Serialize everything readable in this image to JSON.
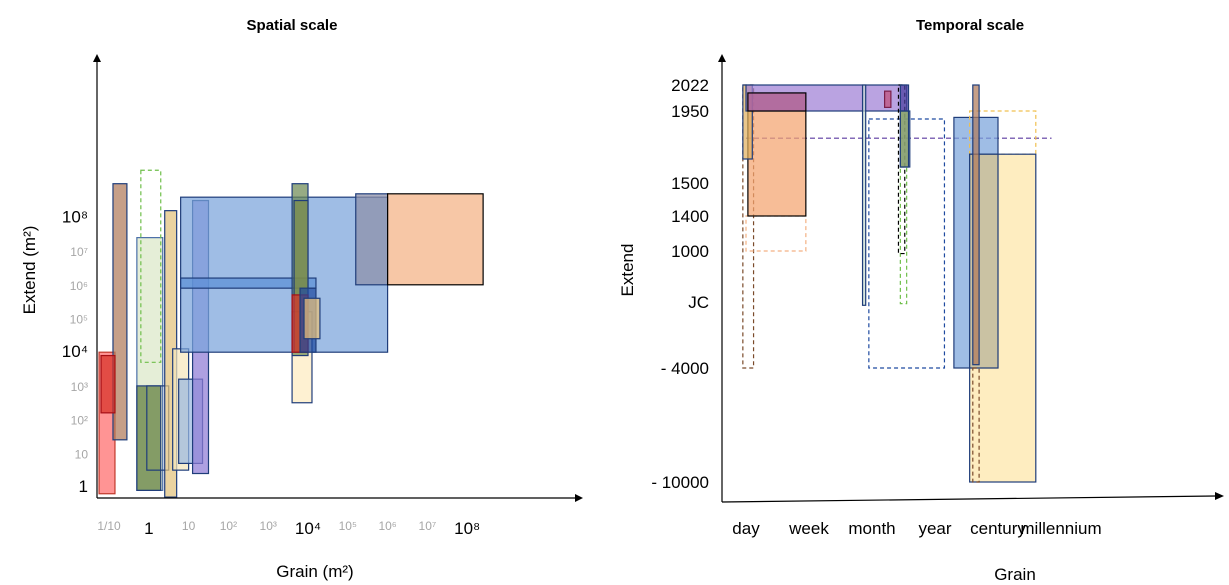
{
  "chart_data": [
    {
      "type": "range-rectangles",
      "title": "Spatial scale",
      "xlabel": "Grain (m²)",
      "ylabel": "Extend (m²)",
      "x_scale": "log10",
      "y_scale": "log10",
      "xlim": [
        -1.3,
        11
      ],
      "ylim": [
        -0.3,
        11.5
      ],
      "x_ticks": [
        {
          "value": -1,
          "label": "1/10",
          "style": "grey"
        },
        {
          "value": 0,
          "label": "1",
          "style": "major"
        },
        {
          "value": 1,
          "label": "10",
          "style": "grey"
        },
        {
          "value": 2,
          "label": "10²",
          "style": "grey"
        },
        {
          "value": 3,
          "label": "10³",
          "style": "grey"
        },
        {
          "value": 4,
          "label": "10⁴",
          "style": "major"
        },
        {
          "value": 5,
          "label": "10⁵",
          "style": "grey"
        },
        {
          "value": 6,
          "label": "10⁶",
          "style": "grey"
        },
        {
          "value": 7,
          "label": "10⁷",
          "style": "grey"
        },
        {
          "value": 8,
          "label": "10⁸",
          "style": "major"
        }
      ],
      "y_ticks": [
        {
          "value": 0,
          "label": "1",
          "style": "major"
        },
        {
          "value": 1,
          "label": "10",
          "style": "grey"
        },
        {
          "value": 2,
          "label": "10²",
          "style": "grey"
        },
        {
          "value": 3,
          "label": "10³",
          "style": "grey"
        },
        {
          "value": 4,
          "label": "10⁴",
          "style": "major"
        },
        {
          "value": 5,
          "label": "10⁵",
          "style": "grey"
        },
        {
          "value": 6,
          "label": "10⁶",
          "style": "grey"
        },
        {
          "value": 7,
          "label": "10⁷",
          "style": "grey"
        },
        {
          "value": 8,
          "label": "10⁸",
          "style": "major"
        }
      ],
      "boxes": [
        {
          "x": [
            -1.25,
            -0.85
          ],
          "y": [
            -0.2,
            4.0
          ],
          "fill": "#ff6b6b",
          "stroke": "#c0392b"
        },
        {
          "x": [
            -0.9,
            -0.55
          ],
          "y": [
            1.4,
            9.0
          ],
          "fill": "#b07a5a",
          "stroke": "#1f3d7a"
        },
        {
          "x": [
            -1.2,
            -0.85
          ],
          "y": [
            2.2,
            3.9
          ],
          "fill": "#d73027",
          "stroke": "#a50f15"
        },
        {
          "x": [
            -0.3,
            0.35
          ],
          "y": [
            -0.1,
            7.4
          ],
          "fill": "#dbe8c8",
          "stroke": "#4a6ea8"
        },
        {
          "x": [
            -0.2,
            0.3
          ],
          "y": [
            3.7,
            9.4
          ],
          "fill": "none",
          "stroke": "#6fbf4a",
          "dash": true
        },
        {
          "x": [
            -0.3,
            0.3
          ],
          "y": [
            -0.1,
            3.0
          ],
          "fill": "#5e7d3a",
          "stroke": "#1f3d7a"
        },
        {
          "x": [
            -0.05,
            0.5
          ],
          "y": [
            0.5,
            3.0
          ],
          "fill": "none",
          "stroke": "#1f3d7a"
        },
        {
          "x": [
            0.4,
            0.7
          ],
          "y": [
            -0.3,
            8.2
          ],
          "fill": "#e2c27b",
          "stroke": "#1f3d7a"
        },
        {
          "x": [
            0.6,
            1.0
          ],
          "y": [
            0.5,
            4.1
          ],
          "fill": "#f5e6bb",
          "stroke": "#1f3d7a"
        },
        {
          "x": [
            0.75,
            1.35
          ],
          "y": [
            0.7,
            3.2
          ],
          "fill": "#9ab8e0",
          "stroke": "#1f3d7a"
        },
        {
          "x": [
            1.1,
            1.5
          ],
          "y": [
            0.4,
            8.5
          ],
          "fill": "#8f7bd6",
          "stroke": "#1f3d7a"
        },
        {
          "x": [
            0.8,
            6.0
          ],
          "y": [
            4.0,
            8.6
          ],
          "fill": "#7aa3db",
          "stroke": "#1f3d7a"
        },
        {
          "x": [
            0.8,
            4.2
          ],
          "y": [
            5.9,
            6.2
          ],
          "fill": "#5b8fd6",
          "stroke": "#1f3d7a"
        },
        {
          "x": [
            5.2,
            6.0
          ],
          "y": [
            6.0,
            8.7
          ],
          "fill": "#8d8fa8",
          "stroke": "#1f3d7a"
        },
        {
          "x": [
            6.0,
            8.4
          ],
          "y": [
            6.0,
            8.7
          ],
          "fill": "#f4b183",
          "stroke": "#000000"
        },
        {
          "x": [
            3.6,
            4.1
          ],
          "y": [
            2.5,
            5.2
          ],
          "fill": "#fdebc0",
          "stroke": "#1f3d7a"
        },
        {
          "x": [
            3.6,
            4.0
          ],
          "y": [
            3.9,
            9.0
          ],
          "fill": "#6f8a55",
          "stroke": "#1f3d7a"
        },
        {
          "x": [
            3.65,
            4.0
          ],
          "y": [
            4.0,
            8.5
          ],
          "fill": "#7c8a4a",
          "stroke": "#1f3d7a"
        },
        {
          "x": [
            3.6,
            4.0
          ],
          "y": [
            4.0,
            5.7
          ],
          "fill": "#d73027",
          "stroke": "#a50f15"
        },
        {
          "x": [
            3.8,
            4.2
          ],
          "y": [
            4.0,
            5.9
          ],
          "fill": "#1f4aa0",
          "stroke": "#1f3d7a"
        },
        {
          "x": [
            3.9,
            4.3
          ],
          "y": [
            4.4,
            5.6
          ],
          "fill": "#e8c07a",
          "stroke": "#1f3d7a"
        }
      ]
    },
    {
      "type": "range-rectangles",
      "title": "Temporal scale",
      "xlabel": "Grain",
      "ylabel": "Extend",
      "x_categories": [
        "day",
        "week",
        "month",
        "year",
        "century",
        "millennium"
      ],
      "xlim": [
        -0.25,
        5.3
      ],
      "y_ticks": [
        {
          "value": 2022,
          "label": "2022"
        },
        {
          "value": 1950,
          "label": "1950"
        },
        {
          "value": 1500,
          "label": "1500"
        },
        {
          "value": 1400,
          "label": "1400"
        },
        {
          "value": 1000,
          "label": "1000"
        },
        {
          "value": 0,
          "label": "JC"
        },
        {
          "value": -4000,
          "label": "- 4000"
        },
        {
          "value": -10000,
          "label": "- 10000"
        }
      ],
      "boxes": [
        {
          "x": [
            -0.05,
            0.12
          ],
          "y": [
            -4000,
            2022
          ],
          "fill": "none",
          "stroke": "#7a4a2a",
          "dash": true
        },
        {
          "x": [
            0.0,
            0.95
          ],
          "y": [
            1000,
            1400
          ],
          "fill": "none",
          "stroke": "#f4b183",
          "dash": true
        },
        {
          "x": [
            0.0,
            4.85
          ],
          "y": [
            1780,
            1780
          ],
          "fill": "none",
          "stroke": "#5b3aa0",
          "dash": true,
          "line": true
        },
        {
          "x": [
            0.03,
            0.95
          ],
          "y": [
            1400,
            2000
          ],
          "fill": "#f4a46f",
          "stroke": "#000000"
        },
        {
          "x": [
            -0.05,
            0.1
          ],
          "y": [
            1650,
            2022
          ],
          "fill": "#e0b060",
          "stroke": "#1f3d7a"
        },
        {
          "x": [
            0.0,
            2.55
          ],
          "y": [
            1950,
            2022
          ],
          "fill": "#9f7fd6",
          "stroke": "#1f3d7a"
        },
        {
          "x": [
            0.03,
            0.95
          ],
          "y": [
            1950,
            2000
          ],
          "fill": "#b06090",
          "stroke": "#000000"
        },
        {
          "x": [
            1.85,
            1.9
          ],
          "y": [
            -200,
            2022
          ],
          "fill": "#c8dcd0",
          "stroke": "#1f3d7a"
        },
        {
          "x": [
            1.95,
            3.15
          ],
          "y": [
            -4000,
            1900
          ],
          "fill": "none",
          "stroke": "#1f4aa0",
          "dash": true
        },
        {
          "x": [
            2.2,
            2.3
          ],
          "y": [
            1960,
            2005
          ],
          "fill": "#c0507a",
          "stroke": "#7a1f4a"
        },
        {
          "x": [
            2.45,
            2.55
          ],
          "y": [
            -100,
            1600
          ],
          "fill": "none",
          "stroke": "#6fbf4a",
          "dash": true
        },
        {
          "x": [
            2.42,
            2.52
          ],
          "y": [
            950,
            2022
          ],
          "fill": "none",
          "stroke": "#000000",
          "dash": true
        },
        {
          "x": [
            2.45,
            2.6
          ],
          "y": [
            1600,
            1950
          ],
          "fill": "#dbe8c8",
          "stroke": "#1f3d7a"
        },
        {
          "x": [
            2.45,
            2.58
          ],
          "y": [
            1600,
            1950
          ],
          "fill": "#6f8a55",
          "stroke": "#1f3d7a"
        },
        {
          "x": [
            2.45,
            2.58
          ],
          "y": [
            1950,
            2022
          ],
          "fill": "#4a40a0",
          "stroke": "#1f3d7a"
        },
        {
          "x": [
            3.3,
            4.0
          ],
          "y": [
            -4000,
            1910
          ],
          "fill": "#7aa3db",
          "stroke": "#1f3d7a"
        },
        {
          "x": [
            3.55,
            4.6
          ],
          "y": [
            1680,
            1950
          ],
          "fill": "none",
          "stroke": "#f0c050",
          "dash": true
        },
        {
          "x": [
            3.55,
            4.6
          ],
          "y": [
            -10000,
            1680
          ],
          "fill": "#fde6a8",
          "stroke": "#1f3d7a"
        },
        {
          "x": [
            3.55,
            4.0
          ],
          "y": [
            -4000,
            1680
          ],
          "fill": "#c0b89a",
          "stroke": "#1f3d7a"
        },
        {
          "x": [
            3.6,
            3.7
          ],
          "y": [
            -10000,
            -4000
          ],
          "fill": "none",
          "stroke": "#7a4a2a",
          "dash": true
        },
        {
          "x": [
            3.6,
            3.7
          ],
          "y": [
            -3800,
            2022
          ],
          "fill": "#b07a5a",
          "stroke": "#1f3d7a"
        }
      ]
    }
  ]
}
